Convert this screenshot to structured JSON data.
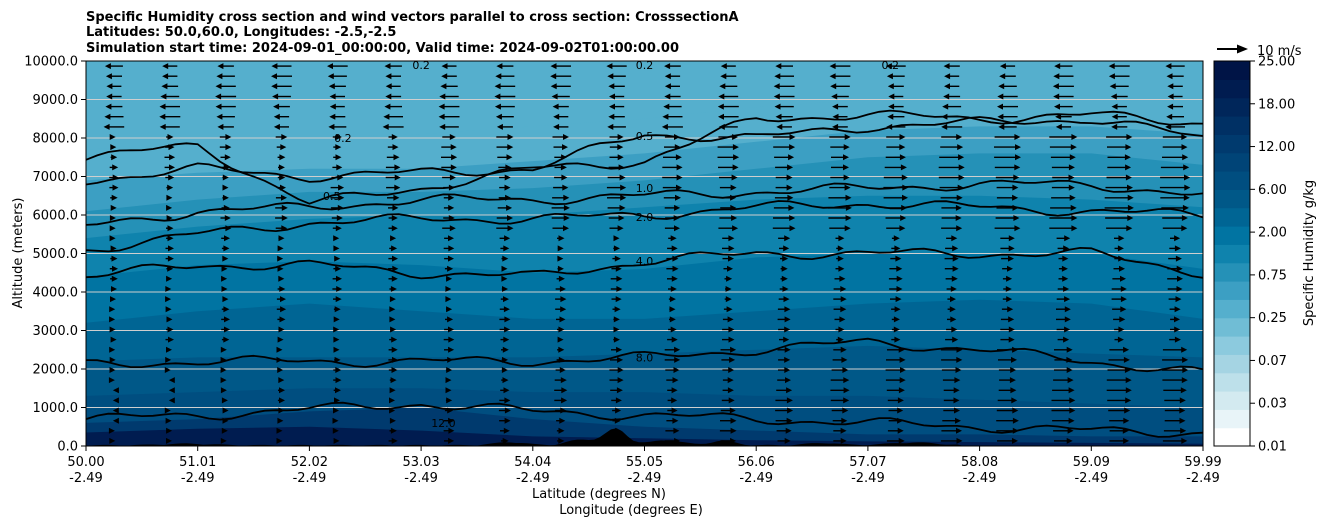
{
  "chart_data": {
    "type": "heatmap",
    "title_lines": [
      "Specific Humidity cross section and wind vectors parallel to cross section: CrosssectionA",
      "Latitudes: 50.0,60.0, Longitudes: -2.5,-2.5",
      "Simulation start time: 2024-09-01_00:00:00, Valid time: 2024-09-02T01:00:00.00"
    ],
    "xlabel_line1": "Latitude (degrees N)",
    "xlabel_line2": "Longitude (degrees E)",
    "ylabel": "Altitude (meters)",
    "x_ticks": [
      {
        "lat": "50.00",
        "lon": "-2.49"
      },
      {
        "lat": "51.01",
        "lon": "-2.49"
      },
      {
        "lat": "52.02",
        "lon": "-2.49"
      },
      {
        "lat": "53.03",
        "lon": "-2.49"
      },
      {
        "lat": "54.04",
        "lon": "-2.49"
      },
      {
        "lat": "55.05",
        "lon": "-2.49"
      },
      {
        "lat": "56.06",
        "lon": "-2.49"
      },
      {
        "lat": "57.07",
        "lon": "-2.49"
      },
      {
        "lat": "58.08",
        "lon": "-2.49"
      },
      {
        "lat": "59.09",
        "lon": "-2.49"
      },
      {
        "lat": "59.99",
        "lon": "-2.49"
      }
    ],
    "y_ticks": [
      "0.0",
      "1000.0",
      "2000.0",
      "3000.0",
      "4000.0",
      "5000.0",
      "6000.0",
      "7000.0",
      "8000.0",
      "9000.0",
      "10000.0"
    ],
    "ylim": [
      0,
      10000
    ],
    "grid": "horizontal",
    "colorbar": {
      "label": "Specific Humidity g/kg",
      "tick_labels": [
        "0.01",
        "0.03",
        "0.07",
        "0.25",
        "0.75",
        "2.00",
        "6.00",
        "12.00",
        "18.00",
        "25.00"
      ],
      "colors": [
        "#ffffff",
        "#e8f4f8",
        "#d3eaf0",
        "#bde0ea",
        "#a5d4e3",
        "#8ccade",
        "#70bdd5",
        "#55afcd",
        "#3c9fc3",
        "#2591b7",
        "#0f83ad",
        "#0174a2",
        "#006594",
        "#005888",
        "#004e80",
        "#004477",
        "#003a6e",
        "#003064",
        "#00265a",
        "#001c50",
        "#001446"
      ]
    },
    "quiver_key": {
      "label": "10 m/s"
    },
    "humidity_band_colors": [
      "#001c50",
      "#003a6e",
      "#004e80",
      "#005888",
      "#006594",
      "#0174a2",
      "#0f83ad",
      "#2591b7",
      "#3c9fc3",
      "#55afcd"
    ],
    "contour_labels": [
      "0.2",
      "0.5",
      "1.0",
      "2.0",
      "4.0",
      "8.0",
      "12.0"
    ],
    "terrain_color": "#000000"
  }
}
